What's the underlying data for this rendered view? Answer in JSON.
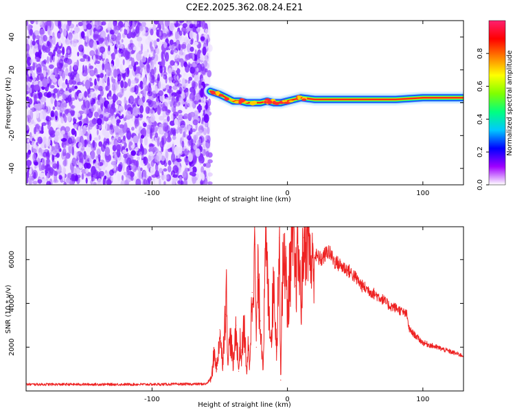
{
  "figure": {
    "title": "C2E2.2025.362.08.24.E21"
  },
  "chart_data": [
    {
      "type": "heatmap",
      "name": "spectrogram",
      "title": "C2E2.2025.362.08.24.E21",
      "xlabel": "Height of straight line (km)",
      "ylabel": "Frequency (Hz)",
      "xlim": [
        -193,
        130
      ],
      "ylim": [
        -50,
        50
      ],
      "xticks": [
        -100,
        0,
        100
      ],
      "xtick_labels": [
        "-100",
        "0",
        "100"
      ],
      "yticks": [
        -40,
        -20,
        0,
        20,
        40
      ],
      "ytick_labels": [
        "-40",
        "-20",
        "0",
        "20",
        "40"
      ],
      "noise_region_x": [
        -193,
        -57
      ],
      "signal_track": {
        "x": [
          -57,
          -50,
          -45,
          -40,
          -35,
          -30,
          -25,
          -20,
          -15,
          -10,
          -5,
          0,
          5,
          10,
          20,
          40,
          60,
          80,
          100,
          110,
          120,
          130
        ],
        "freq": [
          7,
          5,
          3,
          1,
          1,
          0,
          0,
          0,
          1,
          0,
          0,
          1,
          2,
          3,
          2,
          2,
          2,
          2,
          3,
          3,
          3,
          3
        ]
      },
      "colorbar": {
        "label": "Normalized spectral amplitude",
        "range": [
          0,
          1
        ],
        "ticks": [
          0.0,
          0.2,
          0.4,
          0.6,
          0.8
        ],
        "tick_labels": [
          "0.0",
          "0.2",
          "0.4",
          "0.6",
          "0.8"
        ],
        "colors": [
          "#ffffff",
          "#a000ff",
          "#0000ff",
          "#00c8ff",
          "#00ff80",
          "#80ff00",
          "#ffff00",
          "#ff8000",
          "#ff0000",
          "#ff2070"
        ]
      }
    },
    {
      "type": "line",
      "name": "snr",
      "xlabel": "Height of straight line (km)",
      "ylabel": "SNR (10 * v/v)",
      "xlim": [
        -193,
        130
      ],
      "ylim": [
        0,
        7500
      ],
      "xticks": [
        -100,
        0,
        100
      ],
      "xtick_labels": [
        "-100",
        "0",
        "100"
      ],
      "yticks": [
        2000,
        4000,
        6000
      ],
      "ytick_labels": [
        "2000",
        "4000",
        "6000"
      ],
      "color": "#ee2222",
      "series": [
        {
          "name": "SNR",
          "x": [
            -193,
            -150,
            -100,
            -60,
            -56,
            -54,
            -52,
            -50,
            -48,
            -46,
            -45,
            -44,
            -42,
            -40,
            -38,
            -36,
            -35,
            -34,
            -32,
            -30,
            -29,
            -28,
            -26,
            -24,
            -23,
            -22,
            -20,
            -18,
            -16,
            -14,
            -12,
            -10,
            -8,
            -6,
            -5,
            -4,
            -2,
            0,
            2,
            4,
            6,
            8,
            10,
            12,
            15,
            18,
            20,
            25,
            30,
            35,
            40,
            45,
            50,
            55,
            60,
            65,
            70,
            75,
            80,
            85,
            88,
            90,
            95,
            100,
            110,
            120,
            130
          ],
          "y": [
            300,
            300,
            300,
            320,
            600,
            1800,
            1000,
            2800,
            1200,
            3500,
            4300,
            1500,
            2500,
            1100,
            3000,
            900,
            2200,
            1500,
            3000,
            800,
            2000,
            1200,
            4500,
            6700,
            2000,
            5200,
            3200,
            1200,
            6800,
            4000,
            2500,
            5200,
            1800,
            7000,
            500,
            4600,
            6500,
            3500,
            5700,
            7000,
            4800,
            6600,
            3900,
            7000,
            7500,
            5500,
            6200,
            6000,
            6400,
            5900,
            5700,
            5500,
            5200,
            4800,
            4600,
            4400,
            4200,
            3900,
            3800,
            3600,
            3500,
            2800,
            2500,
            2200,
            2000,
            1800,
            1600
          ]
        }
      ]
    }
  ]
}
